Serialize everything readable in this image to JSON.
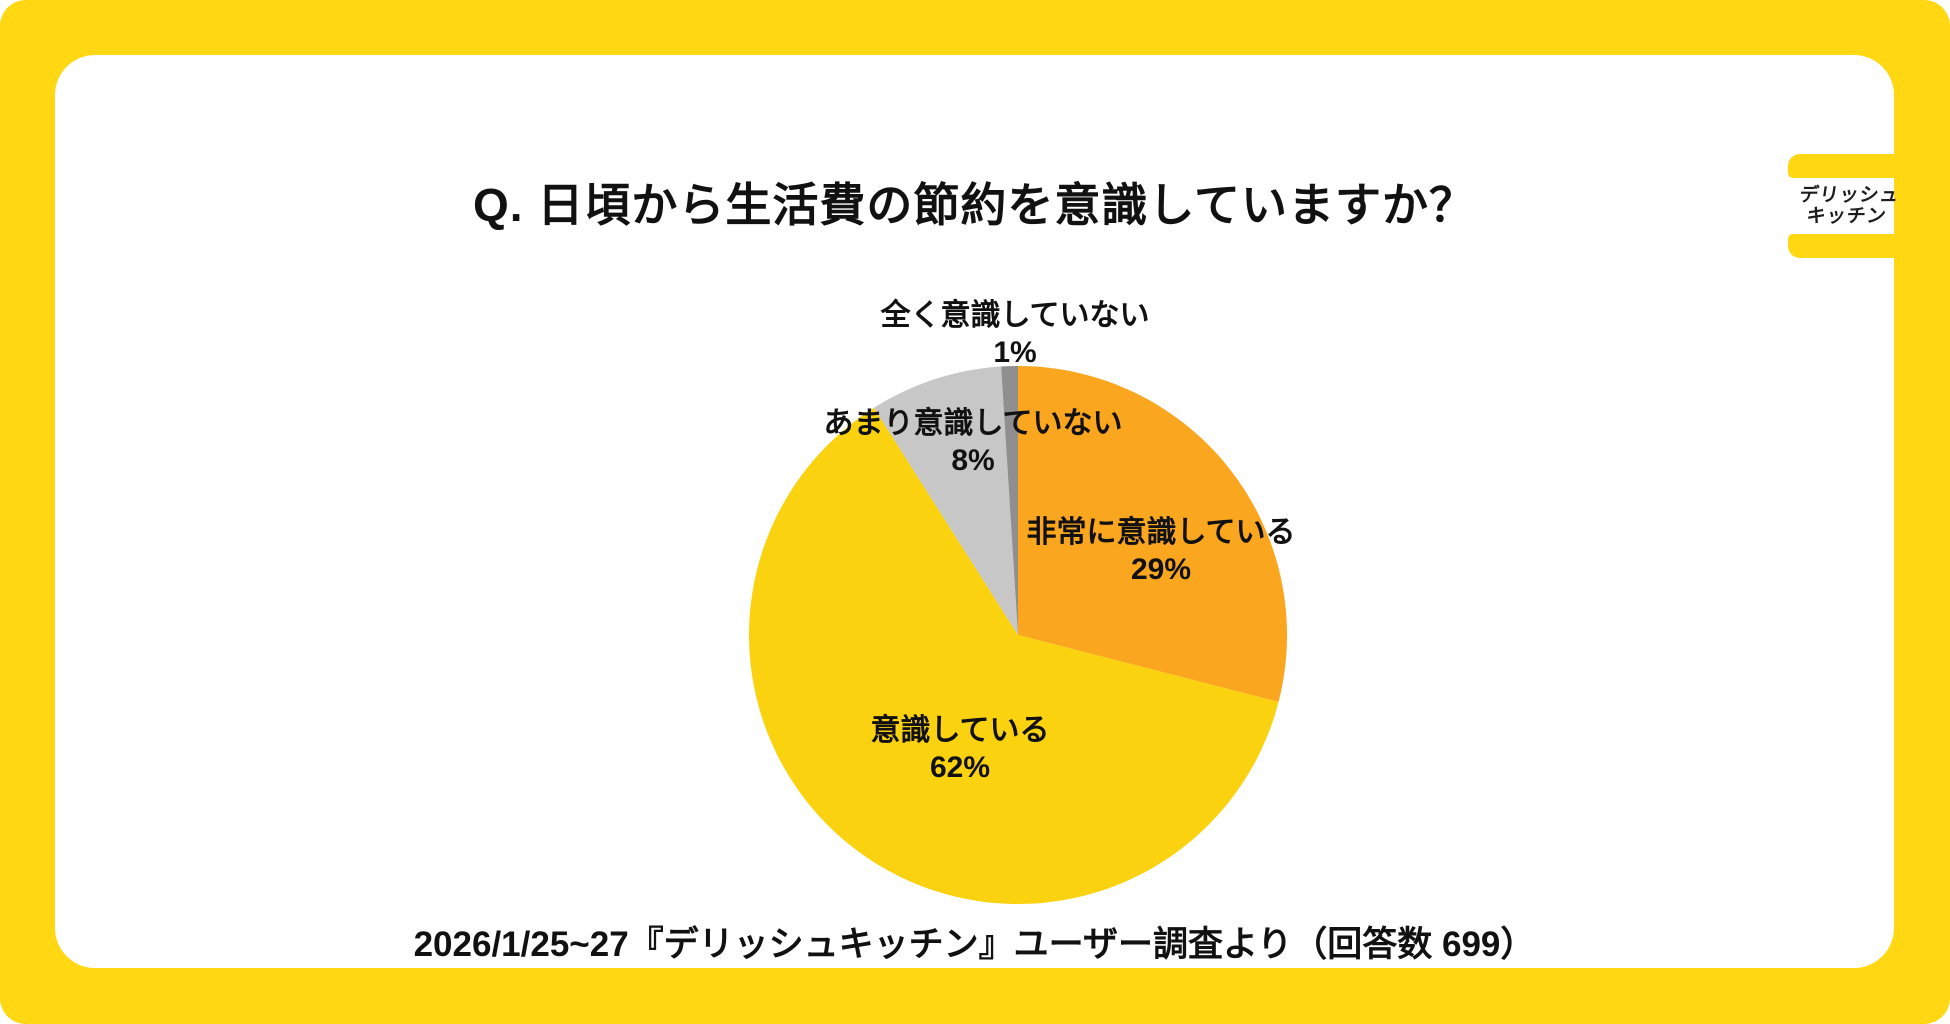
{
  "colors": {
    "frame_yellow": "#FFD712",
    "card_white": "#FFFFFF",
    "text": "#111111"
  },
  "header": {
    "title": "Q. 日頃から生活費の節約を意識していますか？"
  },
  "logo": {
    "brand": "delish-kitchen",
    "line1": "デリッシュ",
    "line2": "キッチン",
    "bar_color": "#FFD712",
    "text_color": "#1C1C1C"
  },
  "chart_data": {
    "type": "pie",
    "title": "Q. 日頃から生活費の節約を意識していますか？",
    "start_angle_deg": 0,
    "direction": "clockwise",
    "total_pct": 100,
    "legend_position": "labels-on-chart",
    "segments": [
      {
        "id": "very-aware",
        "label": "非常に意識している",
        "value": 29,
        "value_label": "29%",
        "color": "#FAA61E"
      },
      {
        "id": "aware",
        "label": "意識している",
        "value": 62,
        "value_label": "62%",
        "color": "#FBD20F"
      },
      {
        "id": "not-much-aware",
        "label": "あまり意識していない",
        "value": 8,
        "value_label": "8%",
        "color": "#C7C7C7"
      },
      {
        "id": "not-at-all-aware",
        "label": "全く意識していない",
        "value": 1,
        "value_label": "1%",
        "color": "#8F8F8F"
      }
    ]
  },
  "footer": {
    "source": "2026/1/25~27『デリッシュキッチン』ユーザー調査より（回答数 699）"
  }
}
